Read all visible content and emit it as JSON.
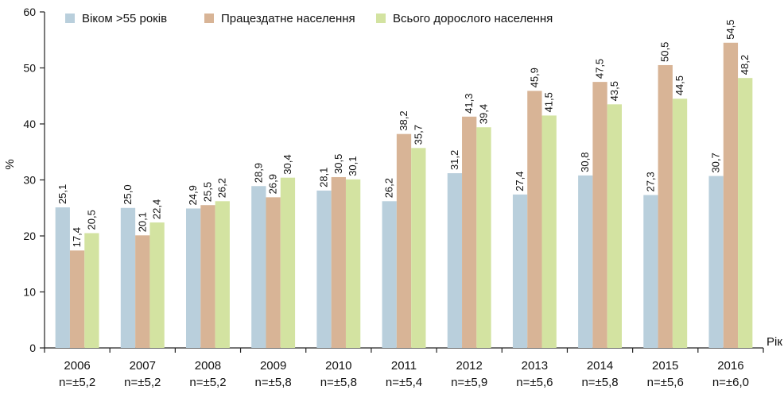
{
  "chart_data": {
    "type": "bar",
    "ylabel": "%",
    "xlabel": "Рік",
    "ylim": [
      0,
      60
    ],
    "yticks": [
      0,
      10,
      20,
      30,
      40,
      50,
      60
    ],
    "grid": false,
    "legend_position": "top",
    "categories": [
      "2006",
      "2007",
      "2008",
      "2009",
      "2010",
      "2011",
      "2012",
      "2013",
      "2014",
      "2015",
      "2016"
    ],
    "sample_notes": [
      "n=±5,2",
      "n=±5,2",
      "n=±5,2",
      "n=±5,8",
      "n=±5,8",
      "n=±5,4",
      "n=±5,9",
      "n=±5,6",
      "n=±5,8",
      "n=±5,6",
      "n=±6,0"
    ],
    "series": [
      {
        "name": "Віком >55 років",
        "color": "#b9cfdc",
        "values": [
          25.1,
          25.0,
          24.9,
          28.9,
          28.1,
          26.2,
          31.2,
          27.4,
          30.8,
          27.3,
          30.7
        ],
        "labels": [
          "25,1",
          "25,0",
          "24,9",
          "28,9",
          "28,1",
          "26,2",
          "31,2",
          "27,4",
          "30,8",
          "27,3",
          "30,7"
        ]
      },
      {
        "name": "Працездатне населення",
        "color": "#d8b496",
        "values": [
          17.4,
          20.1,
          25.5,
          26.9,
          30.5,
          38.2,
          41.3,
          45.9,
          47.5,
          50.5,
          54.5
        ],
        "labels": [
          "17,4",
          "20,1",
          "25,5",
          "26,9",
          "30,5",
          "38,2",
          "41,3",
          "45,9",
          "47,5",
          "50,5",
          "54,5"
        ]
      },
      {
        "name": "Всього дорослого населення",
        "color": "#d3e3a1",
        "values": [
          20.5,
          22.4,
          26.2,
          30.4,
          30.1,
          35.7,
          39.4,
          41.5,
          43.5,
          44.5,
          48.2
        ],
        "labels": [
          "20,5",
          "22,4",
          "26,2",
          "30,4",
          "30,1",
          "35,7",
          "39,4",
          "41,5",
          "43,5",
          "44,5",
          "48,2"
        ]
      }
    ]
  }
}
